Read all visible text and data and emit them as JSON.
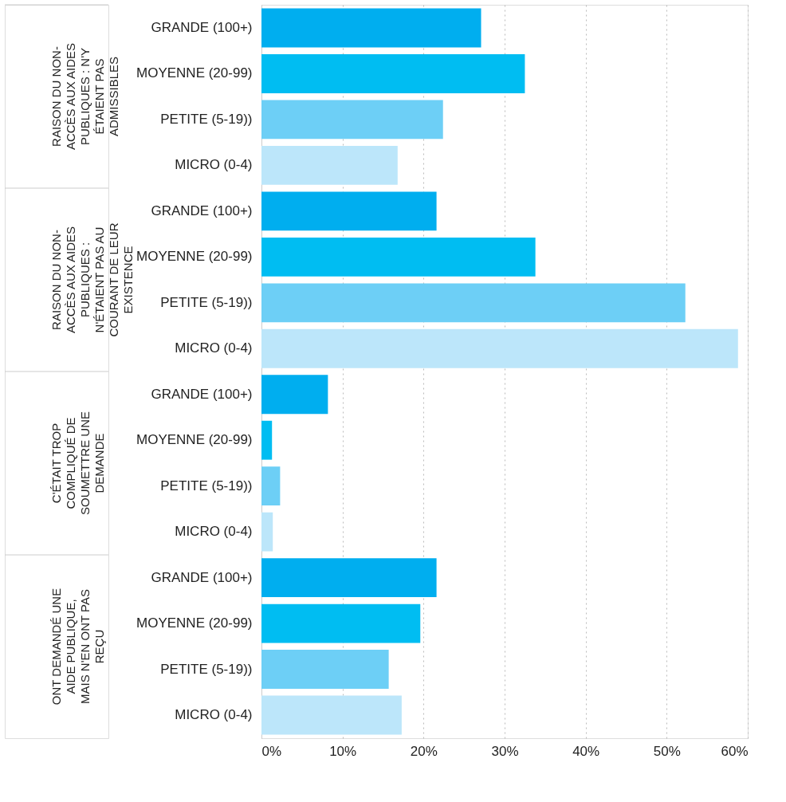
{
  "chart_data": {
    "type": "bar",
    "orientation": "horizontal",
    "categories": [
      "GRANDE (100+)",
      "MOYENNE (20-99)",
      "PETITE (5-19))",
      "MICRO (0-4)",
      "GRANDE (100+)",
      "MOYENNE (20-99)",
      "PETITE (5-19))",
      "MICRO (0-4)",
      "GRANDE (100+)",
      "MOYENNE (20-99)",
      "PETITE (5-19))",
      "MICRO (0-4)",
      "GRANDE (100+)",
      "MOYENNE (20-99)",
      "PETITE (5-19))",
      "MICRO (0-4)"
    ],
    "values": [
      27.1,
      32.5,
      22.4,
      16.8,
      21.6,
      33.8,
      52.3,
      58.8,
      8.2,
      1.3,
      2.3,
      1.4,
      21.6,
      19.6,
      15.7,
      17.3
    ],
    "colors": [
      "#00aeef",
      "#00bdf2",
      "#6dcff6",
      "#bce6fa",
      "#00aeef",
      "#00bdf2",
      "#6dcff6",
      "#bce6fa",
      "#00aeef",
      "#00bdf2",
      "#6dcff6",
      "#bce6fa",
      "#00aeef",
      "#00bdf2",
      "#6dcff6",
      "#bce6fa"
    ],
    "annotations": [
      "RAISON DU NON-ACCÈS AUX AIDES PUBLIQUES : N'Y ÉTAIENT PAS ADMISSIBLES",
      "RAISON DU NON-ACCÈS AUX AIDES PUBLIQUES : N'ÉTAIENT PAS AU COURANT DE LEUR EXISTENCE",
      "C'ÉTAIT TROP COMPLIQUÉ DE SOUMETTRE UNE DEMANDE",
      "ONT DEMANDÉ UNE AIDE PUBLIQUE, MAIS N'EN ONT PAS REÇU"
    ],
    "xlim": [
      0,
      60
    ],
    "xticks": [
      {
        "value": 0,
        "label": "0%"
      },
      {
        "value": 10,
        "label": "10%"
      },
      {
        "value": 20,
        "label": "20%"
      },
      {
        "value": 30,
        "label": "30%"
      },
      {
        "value": 40,
        "label": "40%"
      },
      {
        "value": 50,
        "label": "50%"
      },
      {
        "value": 60,
        "label": "60%"
      }
    ],
    "grid": "x"
  }
}
